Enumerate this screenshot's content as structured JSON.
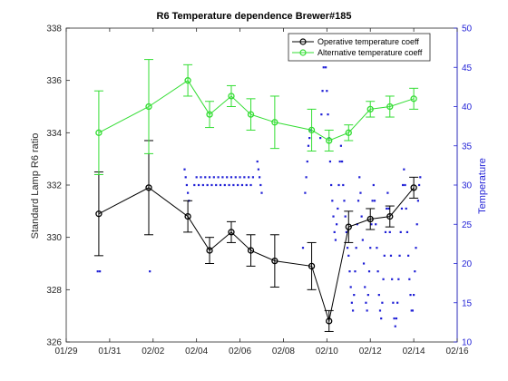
{
  "chart_data": {
    "type": "line",
    "title": "R6 Temperature dependence Brewer#185",
    "xlabel": "",
    "ylabel": "Standard Lamp R6 ratio",
    "ylabel_right": "Temperature",
    "x_ticks": [
      "01/29",
      "01/31",
      "02/02",
      "02/04",
      "02/06",
      "02/08",
      "02/10",
      "02/12",
      "02/14",
      "02/16"
    ],
    "xlim": [
      0,
      18
    ],
    "ylim": [
      326,
      338
    ],
    "y_ticks": [
      326,
      328,
      330,
      332,
      334,
      336,
      338
    ],
    "ylim_right": [
      10,
      50
    ],
    "y_ticks_right": [
      10,
      15,
      20,
      25,
      30,
      35,
      40,
      45,
      50
    ],
    "grid": false,
    "legend_position": "top-right",
    "colors": {
      "operative": "#000000",
      "alternative": "#33dd33",
      "temperature": "#1f1fd6",
      "axis": "#262626"
    },
    "series": [
      {
        "name": "Operative temperature coeff",
        "x": [
          1.5,
          3.8,
          5.6,
          6.6,
          7.6,
          8.5,
          9.6,
          11.3,
          12.1,
          13.0,
          14.0,
          14.9,
          16.0
        ],
        "y": [
          330.9,
          331.9,
          330.8,
          329.5,
          330.2,
          329.5,
          329.1,
          328.9,
          326.8,
          330.4,
          330.7,
          330.8,
          331.9
        ],
        "err": [
          1.6,
          1.8,
          0.6,
          0.5,
          0.4,
          0.6,
          1.0,
          0.9,
          0.4,
          0.6,
          0.4,
          0.4,
          0.4
        ]
      },
      {
        "name": "Alternative temperature coeff",
        "x": [
          1.5,
          3.8,
          5.6,
          6.6,
          7.6,
          8.5,
          9.6,
          11.3,
          12.1,
          13.0,
          14.0,
          14.9,
          16.0
        ],
        "y": [
          334.0,
          335.0,
          336.0,
          334.7,
          335.4,
          334.7,
          334.4,
          334.1,
          333.7,
          334.0,
          334.9,
          335.0,
          335.3
        ],
        "err": [
          1.6,
          1.8,
          0.6,
          0.5,
          0.4,
          0.6,
          1.0,
          0.8,
          0.4,
          0.3,
          0.3,
          0.4,
          0.4
        ]
      },
      {
        "name": "",
        "axis": "right",
        "marker": "dot",
        "segments": [
          {
            "x": [
              1.45,
              1.55
            ],
            "y": [
              19,
              19
            ]
          },
          {
            "x": [
              3.85
            ],
            "y": [
              19
            ]
          },
          {
            "x": [
              5.45,
              5.5,
              5.55,
              5.6,
              5.65
            ],
            "y": [
              32,
              31,
              30,
              29,
              28
            ]
          },
          {
            "x": [
              5.9,
              6.0,
              6.1,
              6.2,
              6.3,
              6.4,
              6.5,
              6.6,
              6.7,
              6.8,
              6.9,
              7.0,
              7.1,
              7.2,
              7.3,
              7.4,
              7.5,
              7.6,
              7.7,
              7.8,
              7.9,
              8.0,
              8.1,
              8.2,
              8.3,
              8.4,
              8.5,
              8.6
            ],
            "y": [
              30,
              31,
              30,
              31,
              30,
              31,
              30,
              31,
              30,
              31,
              30,
              31,
              30,
              31,
              30,
              31,
              30,
              31,
              30,
              31,
              30,
              31,
              30,
              31,
              30,
              31,
              30,
              31
            ]
          },
          {
            "x": [
              8.8,
              8.85,
              8.9,
              8.95,
              9.0
            ],
            "y": [
              33,
              32,
              31,
              30,
              29
            ]
          },
          {
            "x": [
              10.9,
              11.0,
              11.05,
              11.1,
              11.15,
              11.2,
              11.25
            ],
            "y": [
              22,
              29,
              31,
              33,
              35,
              36,
              37
            ]
          },
          {
            "x": [
              11.7,
              11.75,
              11.8,
              11.85,
              11.9,
              11.95,
              12.0,
              12.05,
              12.1,
              12.15,
              12.2,
              12.25,
              12.3,
              12.35,
              12.4,
              12.45,
              12.5,
              12.55,
              12.6,
              12.65,
              12.7,
              12.75,
              12.8,
              12.85,
              12.9,
              12.95,
              13.0
            ],
            "y": [
              36,
              39,
              42,
              45,
              47,
              45,
              42,
              39,
              36,
              33,
              30,
              28,
              26,
              24,
              23,
              25,
              27,
              30,
              33,
              35,
              33,
              30,
              28,
              26,
              24,
              22,
              21
            ]
          },
          {
            "x": [
              13.05,
              13.1,
              13.15,
              13.2,
              13.25,
              13.3,
              13.35,
              13.4,
              13.45,
              13.5,
              13.55,
              13.6,
              13.65,
              13.7,
              13.75,
              13.8,
              13.85,
              13.9,
              13.95,
              14.0
            ],
            "y": [
              19,
              17,
              15,
              14,
              16,
              19,
              22,
              25,
              28,
              31,
              29,
              26,
              23,
              20,
              17,
              15,
              14,
              16,
              19,
              22
            ]
          },
          {
            "x": [
              14.05,
              14.1,
              14.15,
              14.2,
              14.25,
              14.3,
              14.35,
              14.4,
              14.45,
              14.5,
              14.55,
              14.6,
              14.65,
              14.7,
              14.75,
              14.8,
              14.85,
              14.9
            ],
            "y": [
              25,
              28,
              30,
              28,
              25,
              22,
              19,
              16,
              14,
              13,
              15,
              18,
              21,
              24,
              27,
              29,
              27,
              24
            ]
          },
          {
            "x": [
              14.95,
              15.0,
              15.05,
              15.1,
              15.15,
              15.2,
              15.25,
              15.3,
              15.35,
              15.4,
              15.45,
              15.5,
              15.55,
              15.6,
              15.65,
              15.7,
              15.75,
              15.8,
              15.85,
              15.9
            ],
            "y": [
              21,
              18,
              15,
              13,
              12,
              13,
              15,
              18,
              21,
              24,
              27,
              30,
              32,
              30,
              27,
              24,
              21,
              18,
              16,
              14
            ]
          },
          {
            "x": [
              15.95,
              16.0,
              16.05,
              16.1,
              16.15,
              16.2,
              16.25,
              16.3
            ],
            "y": [
              14,
              16,
              19,
              22,
              25,
              28,
              30,
              31
            ]
          }
        ]
      }
    ]
  }
}
